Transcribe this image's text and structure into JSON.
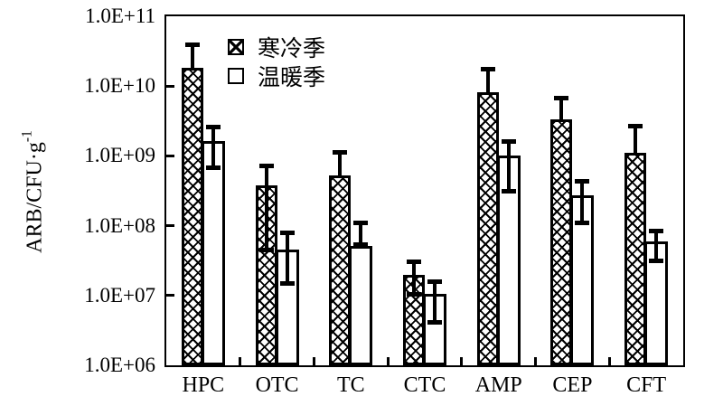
{
  "figure": {
    "background": "#ffffff",
    "ink_color": "#000000"
  },
  "y_axis": {
    "title": "ARB/CFU·g",
    "title_superscript": "-1",
    "scale": "log10",
    "tick_labels": [
      "1.0E+11",
      "1.0E+10",
      "1.0E+09",
      "1.0E+08",
      "1.0E+07",
      "1.0E+06"
    ]
  },
  "x_axis": {
    "categories": [
      "HPC",
      "OTC",
      "TC",
      "CTC",
      "AMP",
      "CEP",
      "CFT"
    ]
  },
  "legend": {
    "items": [
      {
        "label": "寒冷季",
        "swatch": "crosshatch-swatch-icon",
        "fill": "crosshatch"
      },
      {
        "label": "温暖季",
        "swatch": "open-swatch-icon",
        "fill": "open"
      }
    ]
  },
  "chart_data": {
    "type": "bar",
    "yscale": "log",
    "ylim": [
      1000000.0,
      100000000000.0
    ],
    "ylabel": "ARB/CFU·g-1",
    "xlabel": "",
    "grid": false,
    "legend_position": "top-left-inside",
    "categories": [
      "HPC",
      "OTC",
      "TC",
      "CTC",
      "AMP",
      "CEP",
      "CFT"
    ],
    "series": [
      {
        "name": "寒冷季",
        "fill": "crosshatch",
        "values": [
          18000000000.0,
          380000000.0,
          520000000.0,
          20000000.0,
          8200000000.0,
          3300000000.0,
          1100000000.0
        ],
        "err_high": [
          40000000000.0,
          720000000.0,
          1150000000.0,
          31000000.0,
          17500000000.0,
          6800000000.0,
          2700000000.0
        ],
        "err_low": [
          null,
          45000000.0,
          null,
          10500000.0,
          null,
          null,
          null
        ]
      },
      {
        "name": "温暖季",
        "fill": "open",
        "values": [
          1650000000.0,
          45000000.0,
          52000000.0,
          10500000.0,
          1000000000.0,
          270000000.0,
          59000000.0
        ],
        "err_high": [
          2600000000.0,
          81000000.0,
          110000000.0,
          16000000.0,
          1650000000.0,
          440000000.0,
          86000000.0
        ],
        "err_low": [
          680000000.0,
          15000000.0,
          55000000.0,
          4200000.0,
          320000000.0,
          110000000.0,
          32000000.0
        ]
      }
    ]
  }
}
